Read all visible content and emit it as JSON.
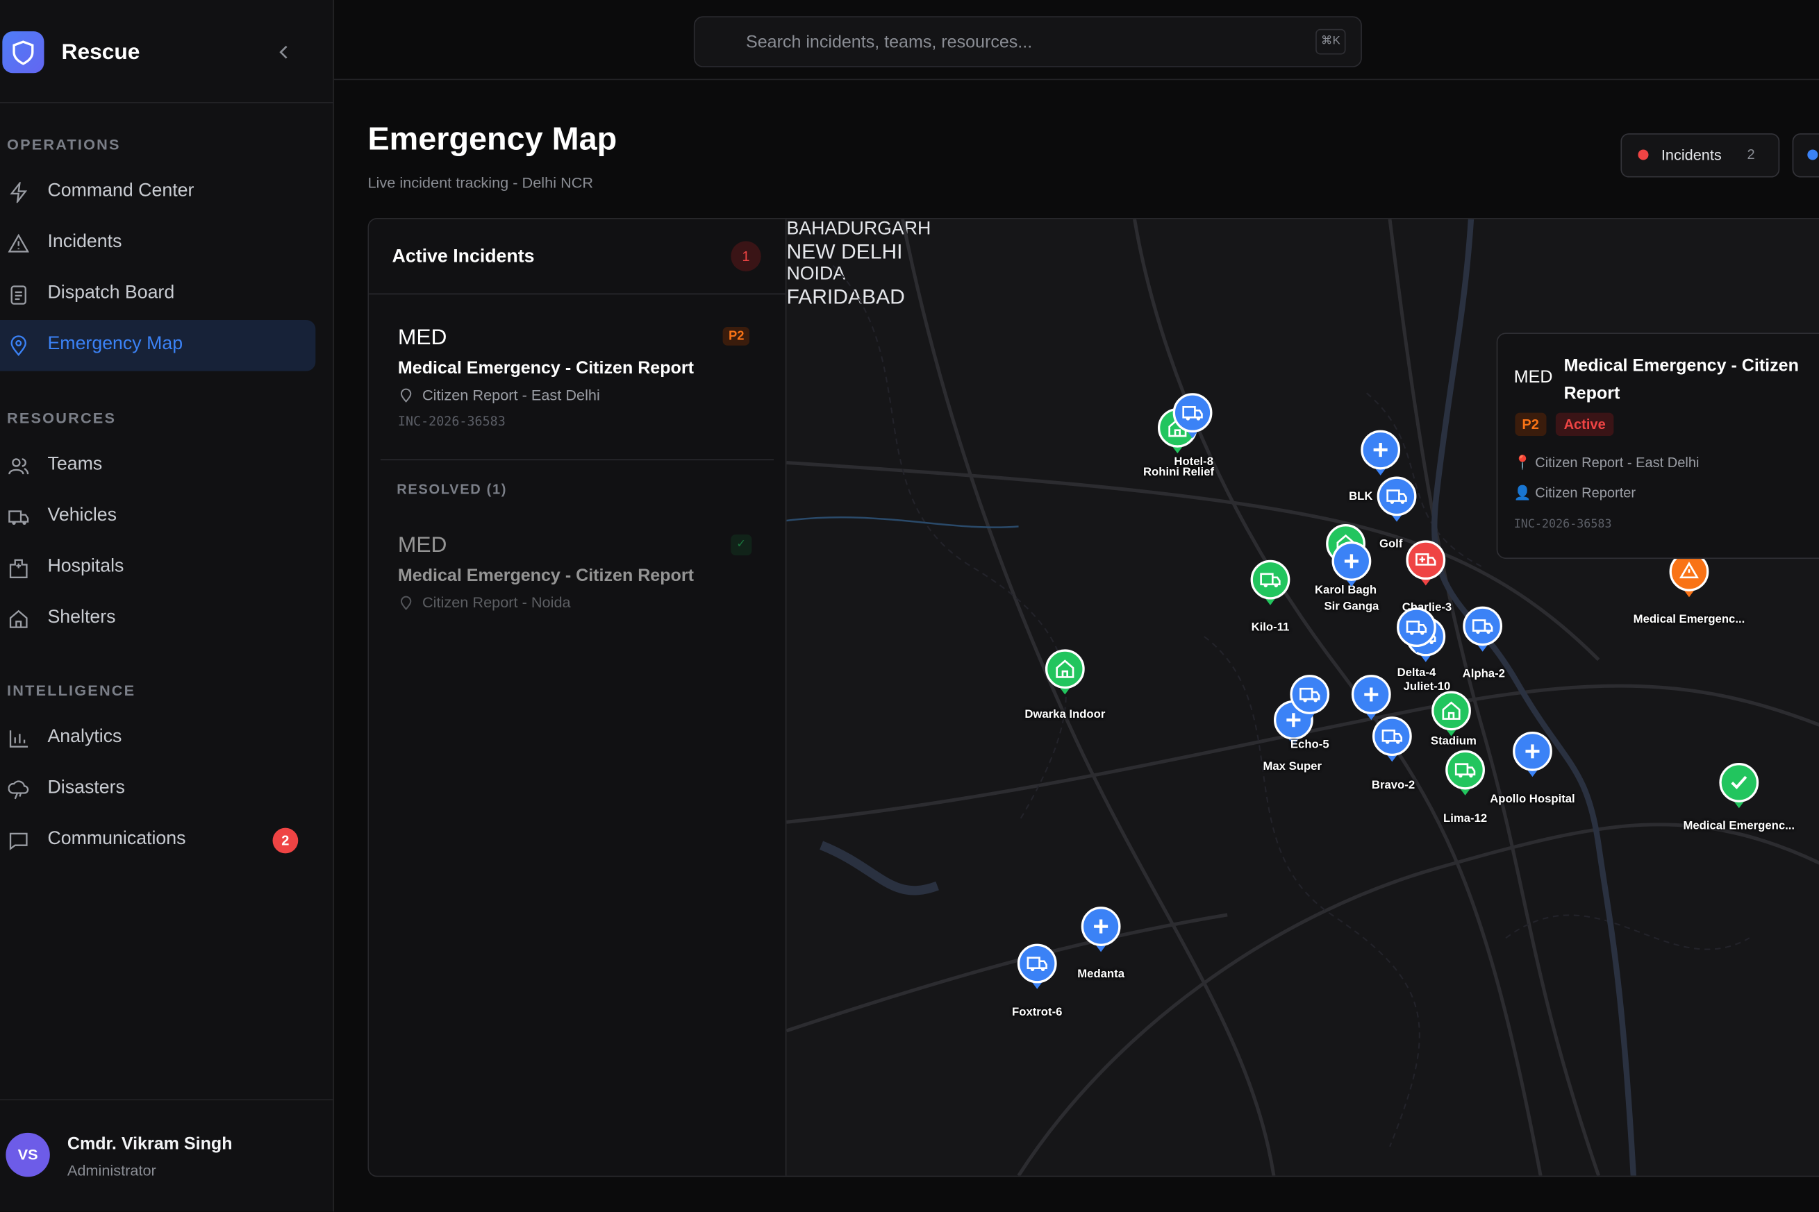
{
  "sidebar": {
    "brand": "Rescue",
    "sections": [
      {
        "title": "OPERATIONS",
        "items": [
          {
            "label": "Command Center"
          },
          {
            "label": "Incidents"
          },
          {
            "label": "Dispatch Board"
          },
          {
            "label": "Emergency Map"
          }
        ]
      },
      {
        "title": "RESOURCES",
        "items": [
          {
            "label": "Teams"
          },
          {
            "label": "Vehicles"
          },
          {
            "label": "Hospitals"
          },
          {
            "label": "Shelters"
          }
        ]
      },
      {
        "title": "INTELLIGENCE",
        "items": [
          {
            "label": "Analytics"
          },
          {
            "label": "Disasters"
          },
          {
            "label": "Communications",
            "badge": 2
          }
        ]
      }
    ],
    "user": {
      "initials": "VS",
      "name": "Cmdr. Vikram Singh",
      "role": "Administrator"
    }
  },
  "search": {
    "placeholder": "Search incidents, teams, resources...",
    "shortcut": "⌘K"
  },
  "header": {
    "title": "Emergency Map",
    "subtitle": "Live incident tracking - Delhi NCR",
    "filters": [
      {
        "label": "Incidents",
        "count": 2
      }
    ]
  },
  "incidents_panel": {
    "title": "Active Incidents",
    "count": 1,
    "active": [
      {
        "type": "MED",
        "priority": "P2",
        "title": "Medical Emergency - Citizen Report",
        "location": "Citizen Report - East Delhi",
        "id": "INC-2026-36583"
      }
    ],
    "resolved_title": "RESOLVED (1)",
    "resolved": [
      {
        "type": "MED",
        "title": "Medical Emergency - Citizen Report",
        "location": "Citizen Report - Noida"
      }
    ]
  },
  "map": {
    "regions": [
      "BAHADURGARH",
      "NEW DELHI",
      "NOIDA",
      "FARIDABAD"
    ],
    "markers": [
      {
        "label": "Rohini Relief",
        "color": "#22c55e",
        "icon": "home"
      },
      {
        "label": "Hotel-8",
        "color": "#3b82f6",
        "icon": "truck"
      },
      {
        "label": "BLK",
        "color": "#3b82f6",
        "icon": "plus"
      },
      {
        "label": "Golf",
        "color": "#3b82f6",
        "icon": "truck"
      },
      {
        "label": "Karol Bagh",
        "color": "#22c55e",
        "icon": "home"
      },
      {
        "label": "Sir Ganga",
        "color": "#3b82f6",
        "icon": "plus"
      },
      {
        "label": "Charlie-3",
        "color": "#ef4444",
        "icon": "ambulance"
      },
      {
        "label": "Kilo-11",
        "color": "#22c55e",
        "icon": "truck"
      },
      {
        "label": "Juliet-10",
        "color": "#3b82f6",
        "icon": "truck"
      },
      {
        "label": "Delta-4",
        "color": "#3b82f6",
        "icon": "truck"
      },
      {
        "label": "Alpha-2",
        "color": "#3b82f6",
        "icon": "truck"
      },
      {
        "label": "Dwarka Indoor",
        "color": "#22c55e",
        "icon": "home"
      },
      {
        "label": "Stadium",
        "color": "#22c55e",
        "icon": "home"
      },
      {
        "label": "Max Super",
        "color": "#3b82f6",
        "icon": "plus"
      },
      {
        "label": "Echo-5",
        "color": "#3b82f6",
        "icon": "truck"
      },
      {
        "color": "#3b82f6",
        "icon": "plus"
      },
      {
        "label": "Bravo-2",
        "color": "#3b82f6",
        "icon": "truck"
      },
      {
        "label": "Apollo Hospital",
        "color": "#3b82f6",
        "icon": "plus"
      },
      {
        "label": "Lima-12",
        "color": "#22c55e",
        "icon": "truck"
      },
      {
        "label": "Medanta",
        "color": "#3b82f6",
        "icon": "plus"
      },
      {
        "label": "Foxtrot-6",
        "color": "#3b82f6",
        "icon": "truck"
      },
      {
        "label": "Medical Emergenc...",
        "color": "#f97316",
        "icon": "alert"
      },
      {
        "label": "Medical Emergenc...",
        "color": "#22c55e",
        "icon": "check"
      }
    ]
  },
  "popup": {
    "type": "MED",
    "title": "Medical Emergency - Citizen Report",
    "priority": "P2",
    "status": "Active",
    "location": "📍 Citizen Report - East Delhi",
    "reporter": "👤 Citizen Reporter",
    "id": "INC-2026-36583"
  }
}
